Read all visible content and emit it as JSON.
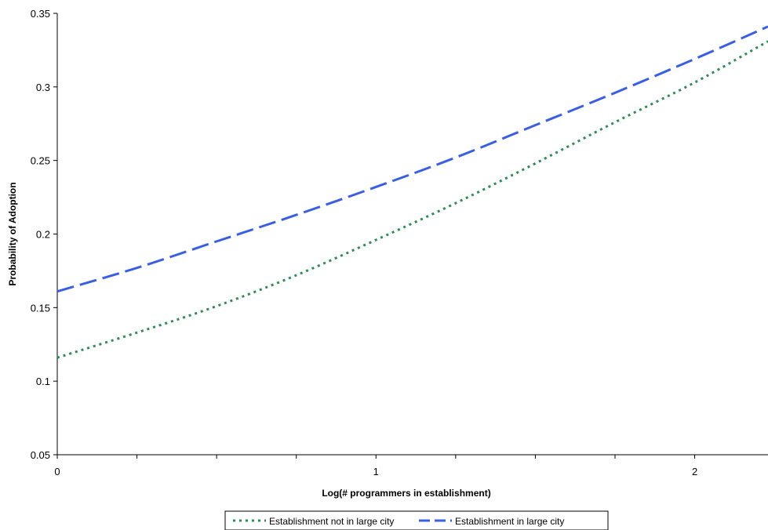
{
  "chart_data": {
    "type": "line",
    "title": "",
    "xlabel": "Log(# programmers in establishment)",
    "ylabel": "Probability of Adoption",
    "xlim": [
      0,
      2.23
    ],
    "ylim": [
      0.05,
      0.35
    ],
    "x_ticks": [
      0,
      1,
      2
    ],
    "x_tick_labels": [
      "0",
      "1",
      "2"
    ],
    "x_minor_ticks": [
      0.25,
      0.5,
      0.75,
      1.25,
      1.5,
      1.75
    ],
    "y_ticks": [
      0.05,
      0.1,
      0.15,
      0.2,
      0.25,
      0.3,
      0.35
    ],
    "y_tick_labels": [
      "0.05",
      "0.1",
      "0.15",
      "0.2",
      "0.25",
      "0.3",
      "0.35"
    ],
    "grid": false,
    "legend_position": "bottom",
    "x": [
      0,
      0.25,
      0.5,
      0.75,
      1.0,
      1.25,
      1.5,
      1.75,
      2.0,
      2.23
    ],
    "series": [
      {
        "name": "Establishment not in large city",
        "style": "dotted",
        "color": "#2e8b57",
        "values": [
          0.116,
          0.133,
          0.151,
          0.172,
          0.196,
          0.221,
          0.248,
          0.276,
          0.303,
          0.331
        ]
      },
      {
        "name": "Establishment in large city",
        "style": "dashed",
        "color": "#3a5fe6",
        "values": [
          0.161,
          0.177,
          0.195,
          0.213,
          0.232,
          0.252,
          0.274,
          0.296,
          0.319,
          0.341
        ]
      }
    ]
  }
}
